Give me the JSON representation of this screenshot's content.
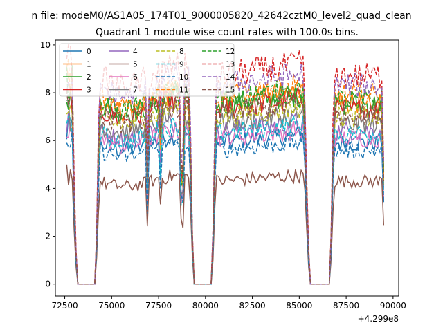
{
  "chart_data": {
    "type": "line",
    "suptitle": "n file: modeM0/AS1A05_174T01_9000005820_42642cztM0_level2_quad_clean",
    "title": "Quadrant 1 module wise count rates with 100.0s bins.",
    "xlabel": "",
    "ylabel": "",
    "offset_text": "+4.299e8",
    "xlim": [
      72000,
      90300
    ],
    "ylim": [
      -0.5,
      10.2
    ],
    "xticks": [
      72500,
      75000,
      77500,
      80000,
      82500,
      85000,
      87500,
      90000
    ],
    "xtick_labels": [
      "72500",
      "75000",
      "77500",
      "80000",
      "82500",
      "85000",
      "87500",
      "90000"
    ],
    "yticks": [
      0,
      2,
      4,
      6,
      8,
      10
    ],
    "ytick_labels": [
      "0",
      "2",
      "4",
      "6",
      "8",
      "10"
    ],
    "bin_seconds": 100,
    "segments": [
      [
        72600,
        72900
      ],
      [
        74300,
        79200
      ],
      [
        80500,
        85300
      ],
      [
        86800,
        89500
      ]
    ],
    "gaps": [
      [
        73100,
        74200
      ],
      [
        79300,
        80400
      ],
      [
        85500,
        86700
      ]
    ],
    "legend_location": "upper-left",
    "series": [
      {
        "name": "0",
        "color": "#1f77b4",
        "dash": false,
        "level": 5.9
      },
      {
        "name": "1",
        "color": "#ff7f0e",
        "dash": false,
        "level": 7.6
      },
      {
        "name": "2",
        "color": "#2ca02c",
        "dash": false,
        "level": 7.5
      },
      {
        "name": "3",
        "color": "#d62728",
        "dash": false,
        "level": 7.3
      },
      {
        "name": "4",
        "color": "#9467bd",
        "dash": false,
        "level": 6.4
      },
      {
        "name": "5",
        "color": "#8c564b",
        "dash": false,
        "level": 4.3
      },
      {
        "name": "6",
        "color": "#e377c2",
        "dash": false,
        "level": 6.1
      },
      {
        "name": "7",
        "color": "#7f7f7f",
        "dash": false,
        "level": 6.7
      },
      {
        "name": "8",
        "color": "#bcbd22",
        "dash": true,
        "level": 7.0
      },
      {
        "name": "9",
        "color": "#17becf",
        "dash": true,
        "level": 6.3
      },
      {
        "name": "10",
        "color": "#1f77b4",
        "dash": true,
        "level": 5.6
      },
      {
        "name": "11",
        "color": "#ff7f0e",
        "dash": true,
        "level": 7.9
      },
      {
        "name": "12",
        "color": "#2ca02c",
        "dash": true,
        "level": 7.7
      },
      {
        "name": "13",
        "color": "#d62728",
        "dash": true,
        "level": 8.7
      },
      {
        "name": "14",
        "color": "#9467bd",
        "dash": true,
        "level": 8.3
      },
      {
        "name": "15",
        "color": "#8c564b",
        "dash": true,
        "level": 7.1
      }
    ]
  }
}
